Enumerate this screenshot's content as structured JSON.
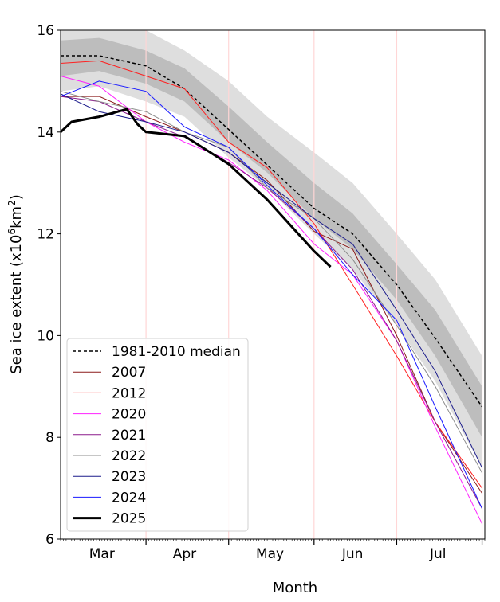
{
  "chart_data": {
    "type": "line",
    "xlabel": "Month",
    "ylabel": "Sea ice extent (x10⁶km²)",
    "ylabel_parts": {
      "main": "Sea ice extent (x10",
      "sup": "6",
      "tail": "km",
      "sup2": "2",
      "close": ")"
    },
    "ylim": [
      6,
      16
    ],
    "yticks": [
      "6",
      "8",
      "10",
      "12",
      "14",
      "16"
    ],
    "xlim": [
      "03-01",
      "08-02"
    ],
    "xtick_labels": [
      {
        "label": "Mar",
        "date": "03-16"
      },
      {
        "label": "Apr",
        "date": "04-15"
      },
      {
        "label": "May",
        "date": "05-16"
      },
      {
        "label": "Jun",
        "date": "06-15"
      },
      {
        "label": "Jul",
        "date": "07-16"
      }
    ],
    "month_lines": [
      "04-01",
      "05-01",
      "06-01",
      "07-01",
      "08-01"
    ],
    "grid": false,
    "legend_position": "lower-left",
    "dates": [
      "03-01",
      "03-15",
      "04-01",
      "04-15",
      "05-01",
      "05-15",
      "06-01",
      "06-15",
      "07-01",
      "07-15",
      "08-01"
    ],
    "interdecile_range": {
      "lower": [
        14.8,
        14.9,
        14.6,
        14.3,
        13.5,
        12.9,
        12.0,
        11.3,
        10.2,
        9.1,
        7.4
      ],
      "upper": [
        16.1,
        16.1,
        16.0,
        15.6,
        15.0,
        14.3,
        13.6,
        13.0,
        12.0,
        11.1,
        9.6
      ],
      "color": "#dedede"
    },
    "interquartile_range": {
      "lower": [
        15.1,
        15.2,
        14.95,
        14.6,
        13.8,
        13.2,
        12.3,
        11.7,
        10.7,
        9.6,
        8.0
      ],
      "upper": [
        15.8,
        15.85,
        15.6,
        15.25,
        14.5,
        13.8,
        13.0,
        12.4,
        11.4,
        10.5,
        9.0
      ],
      "color": "#bdbdbd"
    },
    "series": [
      {
        "name": "1981-2010 median",
        "color": "#000000",
        "dash": true,
        "width": 1.5,
        "values": [
          15.5,
          15.5,
          15.3,
          14.85,
          14.05,
          13.35,
          12.5,
          12.0,
          11.0,
          9.95,
          8.6
        ]
      },
      {
        "name": "2007",
        "color": "#8b1a1a",
        "width": 1,
        "values": [
          14.7,
          14.7,
          14.3,
          14.0,
          13.6,
          13.05,
          12.05,
          11.7,
          10.0,
          8.3,
          6.9
        ]
      },
      {
        "name": "2012",
        "color": "#ff2020",
        "width": 1,
        "values": [
          15.35,
          15.4,
          15.1,
          14.85,
          13.8,
          13.3,
          12.2,
          11.0,
          9.6,
          8.3,
          7.0
        ]
      },
      {
        "name": "2020",
        "color": "#ff20ff",
        "width": 1,
        "values": [
          15.1,
          14.9,
          14.2,
          13.8,
          13.45,
          12.85,
          11.8,
          11.2,
          9.9,
          8.2,
          6.3
        ]
      },
      {
        "name": "2021",
        "color": "#8b1a8b",
        "width": 1,
        "values": [
          14.7,
          14.6,
          14.2,
          13.9,
          13.4,
          12.9,
          12.1,
          11.3,
          9.9,
          8.3,
          6.6
        ]
      },
      {
        "name": "2022",
        "color": "#8c8c8c",
        "width": 1,
        "values": [
          14.8,
          14.6,
          14.4,
          14.0,
          13.7,
          12.9,
          12.3,
          11.5,
          10.2,
          9.0,
          7.3
        ]
      },
      {
        "name": "2023",
        "color": "#1c1c8c",
        "width": 1,
        "values": [
          14.75,
          14.4,
          14.2,
          14.0,
          13.6,
          13.0,
          12.3,
          11.8,
          10.5,
          9.3,
          7.4
        ]
      },
      {
        "name": "2024",
        "color": "#1a1aff",
        "width": 1,
        "values": [
          14.7,
          15.0,
          14.8,
          14.1,
          13.7,
          12.95,
          12.1,
          11.2,
          10.3,
          8.6,
          6.6
        ]
      },
      {
        "name": "2025",
        "color": "#000000",
        "width": 3,
        "dates": [
          "03-01",
          "03-05",
          "03-15",
          "03-25",
          "03-29",
          "04-01",
          "04-15",
          "05-01",
          "05-15",
          "06-01",
          "06-07"
        ],
        "values": [
          14.0,
          14.2,
          14.3,
          14.45,
          14.15,
          14.0,
          13.92,
          13.37,
          12.67,
          11.66,
          11.35
        ]
      }
    ]
  }
}
